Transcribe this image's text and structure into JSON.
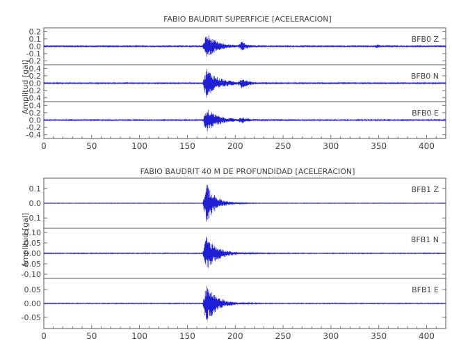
{
  "trace_color": "#1f1fd6",
  "chart_data": [
    {
      "type": "line",
      "title": "FABIO BAUDRIT SUPERFICIE [ACELERACION]",
      "ylabel": "Amplitud [gal]",
      "xlabel": "",
      "xlim": [
        0,
        420
      ],
      "xticks": [
        "0",
        "50",
        "100",
        "150",
        "200",
        "250",
        "300",
        "350",
        "400"
      ],
      "series": [
        {
          "name": "BFB0   Z",
          "ylim": [
            -0.25,
            0.25
          ],
          "yticks": [
            "0.2",
            "0.1",
            "0.0",
            "-0.1",
            "-0.2"
          ],
          "noise": 0.008,
          "events": [
            {
              "t": 170,
              "amp": 0.18,
              "decay": 10
            },
            {
              "t": 207,
              "amp": 0.055,
              "decay": 6
            },
            {
              "t": 348,
              "amp": 0.02,
              "decay": 5
            }
          ]
        },
        {
          "name": "BFB0   N",
          "ylim": [
            -0.5,
            0.5
          ],
          "yticks": [
            "0.4",
            "0.2",
            "0.0",
            "-0.2",
            "-0.4"
          ],
          "noise": 0.015,
          "events": [
            {
              "t": 170,
              "amp": 0.42,
              "decay": 12
            },
            {
              "t": 207,
              "amp": 0.12,
              "decay": 6
            }
          ]
        },
        {
          "name": "BFB0   E",
          "ylim": [
            -0.5,
            0.5
          ],
          "yticks": [
            "0.4",
            "0.2",
            "0.0",
            "-0.2",
            "-0.4"
          ],
          "noise": 0.015,
          "events": [
            {
              "t": 170,
              "amp": 0.32,
              "decay": 12
            },
            {
              "t": 207,
              "amp": 0.06,
              "decay": 6
            }
          ]
        }
      ]
    },
    {
      "type": "line",
      "title": "FABIO BAUDRIT 40 M DE PROFUNDIDAD [ACELERACION]",
      "ylabel": "Amplitud [gal]",
      "xlabel": "",
      "xlim": [
        0,
        420
      ],
      "xticks": [
        "0",
        "50",
        "100",
        "150",
        "200",
        "250",
        "300",
        "350",
        "400"
      ],
      "series": [
        {
          "name": "BFB1   Z",
          "ylim": [
            -0.17,
            0.17
          ],
          "yticks": [
            "0.1",
            "0.0",
            "-0.1"
          ],
          "noise": 0.002,
          "events": [
            {
              "t": 170,
              "amp": 0.14,
              "decay": 9
            }
          ]
        },
        {
          "name": "BFB1   N",
          "ylim": [
            -0.12,
            0.12
          ],
          "yticks": [
            "0.10",
            "0.05",
            "0.00",
            "-0.05",
            "-0.10"
          ],
          "noise": 0.002,
          "events": [
            {
              "t": 170,
              "amp": 0.085,
              "decay": 11
            }
          ]
        },
        {
          "name": "BFB1   E",
          "ylim": [
            -0.09,
            0.09
          ],
          "yticks": [
            "0.05",
            "0.00",
            "-0.05"
          ],
          "noise": 0.0015,
          "events": [
            {
              "t": 170,
              "amp": 0.075,
              "decay": 10
            }
          ]
        }
      ]
    }
  ]
}
